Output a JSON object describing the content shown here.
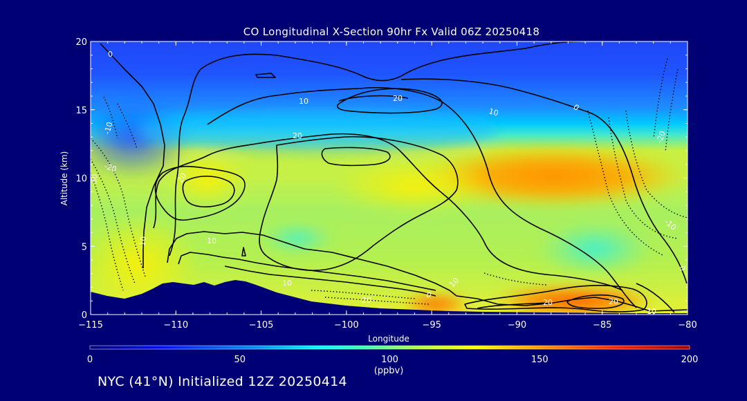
{
  "chart_data": {
    "type": "heatmap",
    "title": "CO Longitudinal X-Section 90hr  Fx Valid 06Z 20250418",
    "xlabel": "Longitude",
    "ylabel": "Altitude (km)",
    "xlim": [
      -115,
      -80
    ],
    "ylim": [
      0,
      20
    ],
    "x_ticks": [
      -115,
      -110,
      -105,
      -100,
      -95,
      -90,
      -85,
      -80
    ],
    "x_tick_labels": [
      "−115",
      "−110",
      "−105",
      "−100",
      "−95",
      "−90",
      "−85",
      "−80"
    ],
    "y_ticks": [
      0,
      5,
      10,
      15,
      20
    ],
    "y_tick_labels": [
      "0",
      "5",
      "10",
      "15",
      "20"
    ],
    "colorbar": {
      "min": 0,
      "max": 200,
      "ticks": [
        0,
        50,
        100,
        150,
        200
      ],
      "tick_labels": [
        "0",
        "50",
        "100",
        "150",
        "200"
      ],
      "unit_label": "(ppbv)"
    },
    "field_description": "CO mixing ratio (ppbv); ~40 above 16 km, 60-90 in 13-16 km band, ~100-120 in mid-troposphere west of -95, maximum ~150 near 10-11 km between -94 and -80, boundary-layer maximum ~160 near 1 km at -87 to -85",
    "contour_labels": [
      "0",
      "10",
      "20",
      "-10",
      "-20",
      "-30",
      "20",
      "10",
      "10",
      "20",
      "10",
      "20",
      "0",
      "-20",
      "-10",
      "0",
      "20",
      "10",
      "20",
      "10",
      "0",
      "-10"
    ],
    "terrain_profile_km": [
      [
        -115,
        1.5
      ],
      [
        -113,
        1.2
      ],
      [
        -111,
        2.3
      ],
      [
        -109,
        2.1
      ],
      [
        -107,
        2.4
      ],
      [
        -105,
        2.0
      ],
      [
        -100,
        0.9
      ],
      [
        -95,
        0.6
      ],
      [
        -90,
        0.3
      ],
      [
        -80,
        0.1
      ]
    ]
  },
  "footer": {
    "init_text": "NYC (41°N) Initialized 12Z 20250414"
  },
  "colors": {
    "background": "#000075",
    "contour": "#000000",
    "text": "#ffffff"
  }
}
